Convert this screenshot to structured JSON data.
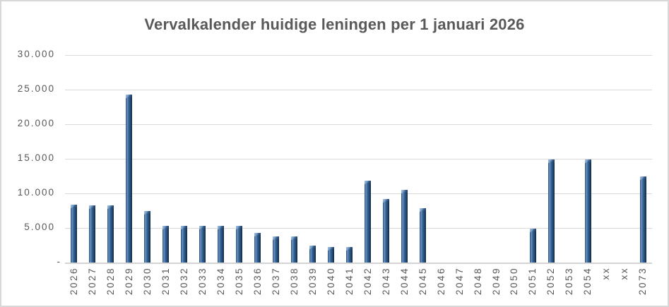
{
  "title": "Vervalkalender huidige leningen per 1 januari 2026",
  "colors": {
    "title_text": "#595959",
    "axis_text": "#595959",
    "gridline": "#d9d9d9",
    "frame_border": "#d8d8d8",
    "bar_main": "#2f5a8b",
    "bar_dark_edge": "#16304f",
    "bar_highlight": "#7198c2"
  },
  "chart_data": {
    "type": "bar",
    "title": "Vervalkalender huidige leningen per 1 januari 2026",
    "xlabel": "",
    "ylabel": "",
    "ylim": [
      0,
      30000
    ],
    "grid": true,
    "legend_position": "none",
    "y_tick_labels": [
      "30.000",
      "25.000",
      "20.000",
      "15.000",
      "10.000",
      "5.000",
      "-"
    ],
    "y_tick_values": [
      30000,
      25000,
      20000,
      15000,
      10000,
      5000,
      0
    ],
    "categories": [
      "2026",
      "2027",
      "2028",
      "2029",
      "2030",
      "2031",
      "2032",
      "2033",
      "2034",
      "2035",
      "2036",
      "2037",
      "2038",
      "2039",
      "2040",
      "2041",
      "2042",
      "2043",
      "2044",
      "2045",
      "2046",
      "2047",
      "2048",
      "2049",
      "2050",
      "2051",
      "2052",
      "2053",
      "2054",
      "xx",
      "xx",
      "2073"
    ],
    "values": [
      8400,
      8300,
      8300,
      24300,
      7400,
      5300,
      5300,
      5300,
      5300,
      5300,
      4300,
      3800,
      3800,
      2500,
      2200,
      2200,
      11800,
      9200,
      10500,
      7900,
      0,
      0,
      0,
      0,
      0,
      4900,
      14900,
      0,
      14900,
      0,
      0,
      12400
    ]
  }
}
